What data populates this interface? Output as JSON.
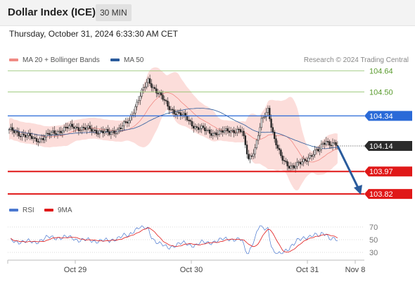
{
  "header": {
    "title": "Dollar Index (ICE)",
    "timeframe": "30 MIN"
  },
  "datetime": "Thursday, October 31, 2024 6:33:30 AM CET",
  "legend_main": [
    {
      "label": "MA 20 + Bollinger Bands",
      "color": "#f08a84"
    },
    {
      "label": "MA 50",
      "color": "#2a5b9c"
    }
  ],
  "legend_rsi": [
    {
      "label": "RSI",
      "color": "#4a78d0"
    },
    {
      "label": "9MA",
      "color": "#e01818"
    }
  ],
  "credit": "Research © 2024 Trading Central",
  "chart_data": [
    {
      "type": "candlestick",
      "title": "Dollar Index (ICE)",
      "timeframe": "30 MIN",
      "x_ticks": [
        "Oct 29",
        "Oct 30",
        "Oct 31",
        "Nov 8"
      ],
      "ylim": [
        103.78,
        104.71
      ],
      "ohlc_sample": [
        {
          "x": "Oct 28 late",
          "open": 104.24,
          "high": 104.27,
          "low": 104.2,
          "close": 104.22
        },
        {
          "x": "Oct 29 open",
          "open": 104.24,
          "high": 104.31,
          "low": 104.22,
          "close": 104.29
        },
        {
          "x": "Oct 29 high",
          "open": 104.44,
          "high": 104.68,
          "low": 104.38,
          "close": 104.57
        },
        {
          "x": "Oct 30 low",
          "open": 104.07,
          "high": 104.11,
          "low": 103.98,
          "close": 104.03
        },
        {
          "x": "Oct 30 late",
          "open": 104.38,
          "high": 104.41,
          "low": 104.18,
          "close": 104.22
        },
        {
          "x": "Oct 31 low",
          "open": 104.0,
          "high": 104.03,
          "low": 103.97,
          "close": 104.0
        },
        {
          "x": "Oct 31 last",
          "open": 104.16,
          "high": 104.18,
          "low": 104.13,
          "close": 104.14
        }
      ],
      "levels": [
        {
          "value": "104.64",
          "type": "resistance",
          "color": "#8fc26a"
        },
        {
          "value": "104.50",
          "type": "resistance",
          "color": "#8fc26a"
        },
        {
          "value": "104.34",
          "type": "pivot",
          "color": "#2a6ad8"
        },
        {
          "value": "104.14",
          "type": "last",
          "color": "#2b2b2b"
        },
        {
          "value": "103.97",
          "type": "support",
          "color": "#e01818"
        },
        {
          "value": "103.82",
          "type": "support",
          "color": "#e01818"
        }
      ],
      "forecast_arrow": {
        "from": 104.14,
        "to": 103.82,
        "color": "#2a5b9c"
      }
    },
    {
      "type": "line",
      "name": "RSI panel",
      "y_ticks": [
        "70",
        "50",
        "30"
      ],
      "ylim": [
        25,
        75
      ],
      "series": [
        {
          "name": "RSI"
        },
        {
          "name": "9MA"
        }
      ]
    }
  ]
}
